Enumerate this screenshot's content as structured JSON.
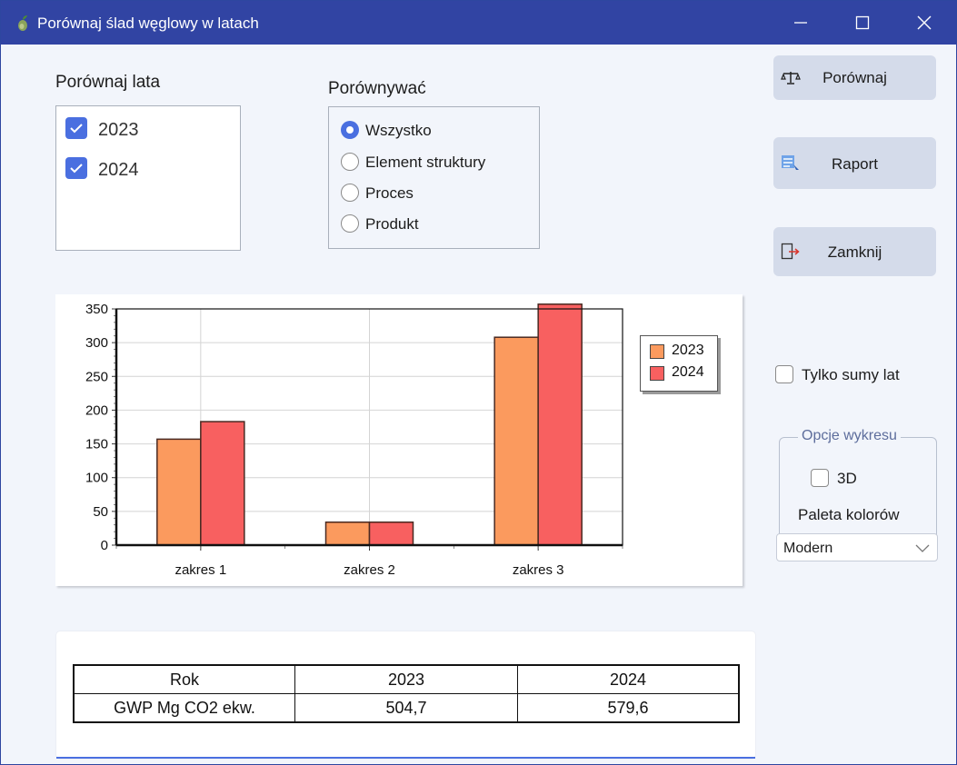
{
  "window": {
    "title": "Porównaj ślad węglowy w latach"
  },
  "years_group": {
    "label": "Porównaj lata",
    "items": [
      {
        "label": "2023",
        "checked": true
      },
      {
        "label": "2024",
        "checked": true
      }
    ]
  },
  "compare_group": {
    "label": "Porównywać",
    "options": [
      {
        "label": "Wszystko",
        "selected": true
      },
      {
        "label": "Element struktury",
        "selected": false
      },
      {
        "label": "Proces",
        "selected": false
      },
      {
        "label": "Produkt",
        "selected": false
      }
    ]
  },
  "buttons": {
    "compare": "Porównaj",
    "report": "Raport",
    "close": "Zamknij"
  },
  "only_totals": {
    "label": "Tylko sumy lat",
    "checked": false
  },
  "chart_options": {
    "legend": "Opcje wykresu",
    "three_d_label": "3D",
    "three_d_checked": false,
    "palette_label": "Paleta kolorów",
    "palette_value": "Modern"
  },
  "chart_data": {
    "type": "bar",
    "categories": [
      "zakres 1",
      "zakres 2",
      "zakres 3"
    ],
    "series": [
      {
        "name": "2023",
        "values": [
          157,
          34,
          308
        ],
        "color": "#fb9a5e"
      },
      {
        "name": "2024",
        "values": [
          183,
          34,
          357
        ],
        "color": "#f86060"
      }
    ],
    "ylim": [
      0,
      350
    ],
    "yticks": [
      "0",
      "50",
      "100",
      "150",
      "200",
      "250",
      "300",
      "350"
    ],
    "grid": true,
    "legend_position": "right"
  },
  "table": {
    "header": [
      "Rok",
      "2023",
      "2024"
    ],
    "rows": [
      [
        "GWP Mg CO2 ekw.",
        "504,7",
        "579,6"
      ]
    ]
  }
}
